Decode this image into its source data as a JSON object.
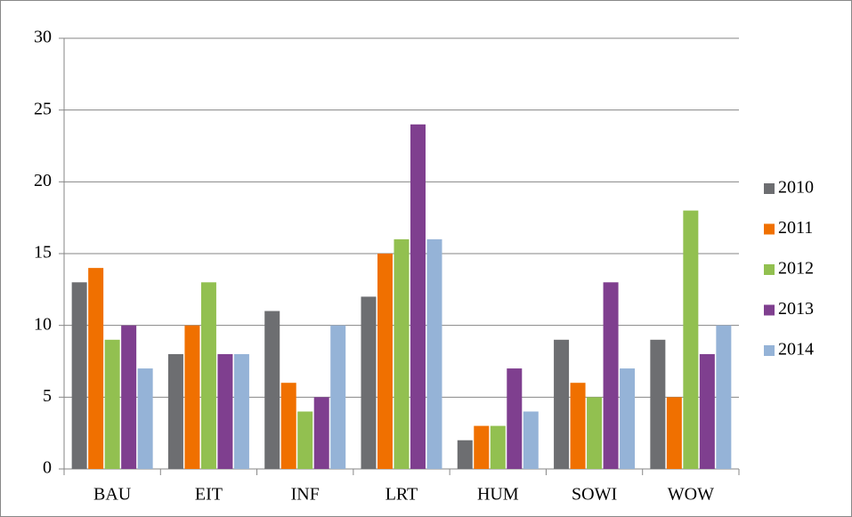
{
  "chart_data": {
    "type": "bar",
    "categories": [
      "BAU",
      "EIT",
      "INF",
      "LRT",
      "HUM",
      "SOWI",
      "WOW"
    ],
    "series": [
      {
        "name": "2010",
        "color": "#6d6e71",
        "values": [
          13,
          8,
          11,
          12,
          2,
          9,
          9
        ]
      },
      {
        "name": "2011",
        "color": "#f07000",
        "values": [
          14,
          10,
          6,
          15,
          3,
          6,
          5
        ]
      },
      {
        "name": "2012",
        "color": "#92c050",
        "values": [
          9,
          13,
          4,
          16,
          3,
          5,
          18
        ]
      },
      {
        "name": "2013",
        "color": "#7f3f8f",
        "values": [
          10,
          8,
          5,
          24,
          7,
          13,
          8
        ]
      },
      {
        "name": "2014",
        "color": "#95b3d7",
        "values": [
          7,
          8,
          10,
          16,
          4,
          7,
          10
        ]
      }
    ],
    "ylim": [
      0,
      30
    ],
    "yticks": [
      0,
      5,
      10,
      15,
      20,
      25,
      30
    ],
    "grid": true,
    "legend": "right"
  }
}
